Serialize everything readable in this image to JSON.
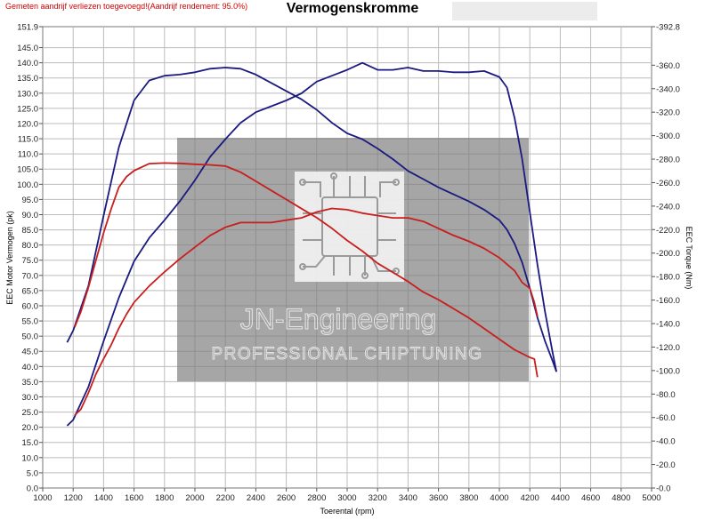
{
  "header": {
    "note": "Gemeten aandrijf verliezen toegevoegd!(Aandrijf rendement: 95.0%)",
    "title": "Vermogenskromme"
  },
  "watermark": {
    "brand": "JN-Engineering",
    "tagline": "PROFESSIONAL CHIPTUNING",
    "logo_icon": "circuit-chip-icon"
  },
  "colors": {
    "stock": "#c81e1e",
    "tuned": "#1a1a80",
    "grid": "#bcbcbc",
    "watermark_bg": "#7c7c7c"
  },
  "chart_data": {
    "type": "line",
    "title": "Vermogenskromme",
    "xlabel": "Toerental (rpm)",
    "ylabel": "EEC Motor Vermogen (pk)",
    "y2label": "EEC Torque (Nm)",
    "xlim": [
      1000,
      5000
    ],
    "ylim": [
      0,
      151.9
    ],
    "y2lim": [
      0,
      392.8
    ],
    "grid": true,
    "x_ticks": [
      "1000",
      "1200",
      "1400",
      "1600",
      "1800",
      "2000",
      "2200",
      "2400",
      "2600",
      "2800",
      "3000",
      "3200",
      "3400",
      "3600",
      "3800",
      "4000",
      "4200",
      "4400",
      "4600",
      "4800",
      "5000"
    ],
    "y_ticks": [
      "151.9",
      "145.0",
      "140.0",
      "135.0",
      "130.0",
      "125.0",
      "120.0",
      "115.0",
      "110.0",
      "105.0",
      "100.0",
      "95.0",
      "90.0",
      "85.0",
      "80.0",
      "75.0",
      "70.0",
      "65.0",
      "60.0",
      "55.0",
      "50.0",
      "45.0",
      "40.0",
      "35.0",
      "30.0",
      "25.0",
      "20.0",
      "15.0",
      "10.0",
      "5.0",
      "0.0"
    ],
    "y2_ticks": [
      "392.8",
      "360.0",
      "340.0",
      "320.0",
      "300.0",
      "280.0",
      "260.0",
      "240.0",
      "220.0",
      "200.0",
      "180.0",
      "160.0",
      "140.0",
      "120.0",
      "100.0",
      "80.0",
      "60.0",
      "40.0",
      "20.0",
      "0.0"
    ],
    "series": [
      {
        "axis": "y2",
        "color": "#1a1a80",
        "x": [
          1160,
          1200,
          1300,
          1400,
          1500,
          1600,
          1700,
          1800,
          1900,
          2000,
          2100,
          2200,
          2300,
          2400,
          2500,
          2600,
          2700,
          2800,
          2900,
          3000,
          3100,
          3200,
          3300,
          3400,
          3500,
          3600,
          3700,
          3800,
          3900,
          4000,
          4050,
          4100,
          4150,
          4200,
          4250,
          4300,
          4350,
          4375
        ],
        "y": [
          124,
          134,
          172,
          232,
          290,
          330,
          347,
          351,
          352,
          354,
          357,
          358,
          357,
          352,
          345,
          338,
          331,
          322,
          311,
          302,
          297,
          289,
          280,
          270,
          263,
          256,
          250,
          244,
          237,
          228,
          220,
          208,
          192,
          170,
          145,
          125,
          108,
          99
        ]
      },
      {
        "axis": "y2",
        "color": "#1a1a80",
        "x": [
          1160,
          1200,
          1300,
          1400,
          1500,
          1600,
          1700,
          1800,
          1900,
          2000,
          2100,
          2200,
          2300,
          2400,
          2500,
          2600,
          2700,
          2800,
          2900,
          3000,
          3100,
          3200,
          3300,
          3400,
          3500,
          3600,
          3700,
          3800,
          3900,
          4000,
          4050,
          4100,
          4150,
          4200,
          4250,
          4300,
          4350,
          4375
        ],
        "y": [
          53,
          58,
          86,
          125,
          162,
          193,
          213,
          228,
          244,
          262,
          282,
          297,
          311,
          320,
          325,
          330,
          336,
          346,
          351,
          356,
          362,
          356,
          356,
          358,
          355,
          355,
          354,
          354,
          355,
          350,
          341,
          315,
          280,
          235,
          190,
          150,
          115,
          99
        ]
      },
      {
        "axis": "y",
        "color": "#c81e1e",
        "x": [
          1210,
          1250,
          1300,
          1350,
          1400,
          1450,
          1500,
          1550,
          1600,
          1700,
          1800,
          1900,
          2000,
          2100,
          2200,
          2300,
          2400,
          2500,
          2600,
          2700,
          2800,
          2900,
          3000,
          3100,
          3200,
          3300,
          3400,
          3500,
          3600,
          3700,
          3800,
          3900,
          4000,
          4100,
          4200,
          4230,
          4250
        ],
        "y": [
          53,
          58,
          66,
          75,
          84,
          92,
          99,
          102.5,
          104.5,
          106.8,
          107,
          106.9,
          106.6,
          106.4,
          106,
          104,
          101,
          98,
          95,
          92,
          89,
          85.5,
          81.5,
          78,
          74,
          71,
          68,
          64.5,
          62,
          59,
          56,
          52.5,
          49,
          45.5,
          43,
          42.5,
          36.5
        ]
      },
      {
        "axis": "y2",
        "color": "#c81e1e",
        "x": [
          1210,
          1250,
          1300,
          1350,
          1400,
          1450,
          1500,
          1550,
          1600,
          1700,
          1800,
          1900,
          2000,
          2100,
          2200,
          2300,
          2400,
          2500,
          2600,
          2700,
          2800,
          2900,
          3000,
          3100,
          3200,
          3300,
          3400,
          3500,
          3600,
          3700,
          3800,
          3900,
          4000,
          4100,
          4150,
          4200,
          4230,
          4250
        ],
        "y": [
          62,
          67,
          81,
          97,
          110,
          122,
          136,
          148,
          158,
          172,
          184,
          195,
          205,
          215,
          222,
          226,
          226,
          226,
          228,
          230,
          235,
          238,
          237,
          234,
          232,
          230,
          230,
          227,
          221,
          215,
          210,
          204,
          196,
          185,
          175,
          170,
          158,
          146
        ]
      }
    ]
  }
}
